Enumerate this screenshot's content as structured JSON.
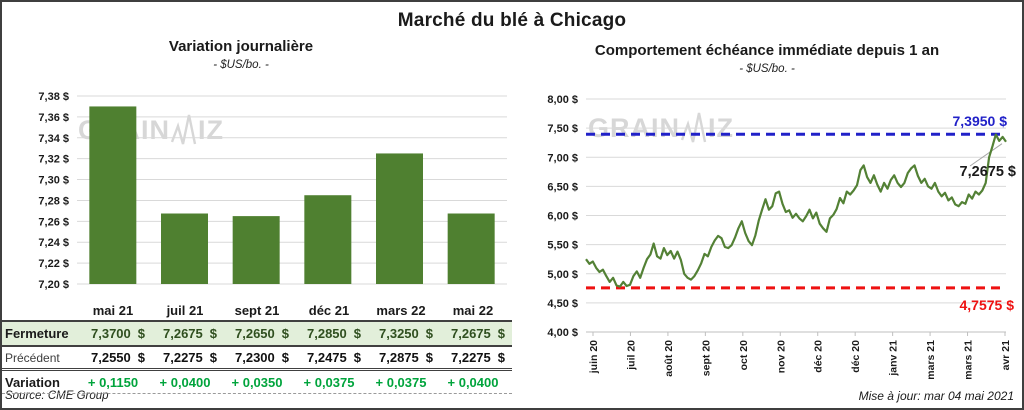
{
  "page": {
    "title": "Marché du blé à Chicago",
    "source": "Source: CME Group",
    "updated": "Mise à jour: mar 04 mai 2021",
    "watermark": {
      "prefix": "GRAIN",
      "suffix": "IZ"
    }
  },
  "chart_data": [
    {
      "type": "bar",
      "title": "Variation journalière",
      "subtitle": "- $US/bo. -",
      "categories": [
        "mai 21",
        "juil 21",
        "sept 21",
        "déc 21",
        "mars 22",
        "mai 22"
      ],
      "values": [
        7.37,
        7.2675,
        7.265,
        7.285,
        7.325,
        7.2675
      ],
      "ylim": [
        7.2,
        7.38
      ],
      "ytick_labels": [
        "7,38 $",
        "7,36 $",
        "7,34 $",
        "7,32 $",
        "7,30 $",
        "7,28 $",
        "7,26 $",
        "7,24 $",
        "7,22 $",
        "7,20 $"
      ],
      "grid": true,
      "bar_color": "#4F8030"
    },
    {
      "type": "line",
      "title": "Comportement échéance immédiate depuis 1 an",
      "subtitle": "- $US/bo. -",
      "x_labels": [
        "juin 20",
        "juil 20",
        "août 20",
        "sept 20",
        "oct 20",
        "nov 20",
        "déc 20",
        "déc 20",
        "janv 21",
        "mars 21",
        "mars 21",
        "avr 21"
      ],
      "ylim": [
        4.0,
        8.0
      ],
      "ytick_labels": [
        "8,00 $",
        "7,50 $",
        "7,00 $",
        "6,50 $",
        "6,00 $",
        "5,50 $",
        "5,00 $",
        "4,50 $",
        "4,00 $"
      ],
      "grid": true,
      "line_color": "#538135",
      "values": [
        5.25,
        5.17,
        5.21,
        5.1,
        5.03,
        5.07,
        4.96,
        4.86,
        4.93,
        4.8,
        4.78,
        4.86,
        4.79,
        4.81,
        4.96,
        5.04,
        4.93,
        5.1,
        5.25,
        5.33,
        5.52,
        5.3,
        5.26,
        5.44,
        5.32,
        5.39,
        5.26,
        5.38,
        5.24,
        5.0,
        4.93,
        4.9,
        4.96,
        5.06,
        5.18,
        5.34,
        5.3,
        5.46,
        5.57,
        5.65,
        5.61,
        5.46,
        5.44,
        5.49,
        5.62,
        5.78,
        5.9,
        5.7,
        5.56,
        5.49,
        5.66,
        5.91,
        6.1,
        6.28,
        6.1,
        6.16,
        6.38,
        6.41,
        6.2,
        6.06,
        6.09,
        5.96,
        6.03,
        5.95,
        5.9,
        5.99,
        6.1,
        5.95,
        6.05,
        5.86,
        5.78,
        5.72,
        5.95,
        6.01,
        6.11,
        6.3,
        6.21,
        6.41,
        6.36,
        6.43,
        6.52,
        6.78,
        6.86,
        6.66,
        6.56,
        6.69,
        6.53,
        6.41,
        6.56,
        6.46,
        6.61,
        6.69,
        6.56,
        6.49,
        6.56,
        6.73,
        6.81,
        6.86,
        6.68,
        6.56,
        6.63,
        6.5,
        6.46,
        6.56,
        6.41,
        6.33,
        6.39,
        6.26,
        6.31,
        6.19,
        6.16,
        6.23,
        6.2,
        6.36,
        6.29,
        6.41,
        6.36,
        6.43,
        6.56,
        7.0,
        7.19,
        7.39,
        7.28,
        7.35,
        7.2675
      ],
      "high_line": {
        "value": 7.395,
        "label": "7,3950 $",
        "color": "#2121C8"
      },
      "low_line": {
        "value": 4.7575,
        "label": "4,7575 $",
        "color": "#EE1111"
      },
      "last_label": {
        "text": "7,2675 $",
        "color": "#1a1a1a"
      }
    }
  ],
  "table": {
    "columns": [
      "mai 21",
      "juil 21",
      "sept 21",
      "déc 21",
      "mars 22",
      "mai 22"
    ],
    "rows": [
      {
        "label": "Fermeture",
        "values": [
          "7,3700 $",
          "7,2675 $",
          "7,2650 $",
          "7,2850 $",
          "7,3250 $",
          "7,2675 $"
        ]
      },
      {
        "label": "Précédent",
        "values": [
          "7,2550 $",
          "7,2275 $",
          "7,2300 $",
          "7,2475 $",
          "7,2875 $",
          "7,2275 $"
        ]
      },
      {
        "label": "Variation",
        "values": [
          "+ 0,1150",
          "+ 0,0400",
          "+ 0,0350",
          "+ 0,0375",
          "+ 0,0375",
          "+ 0,0400"
        ]
      }
    ]
  },
  "colors": {
    "bar_green": "#4F8030",
    "line_green": "#538135",
    "high_blue": "#2121C8",
    "low_red": "#EE1111",
    "variation_green": "#00A43C",
    "gridline": "#D9D9D9"
  }
}
